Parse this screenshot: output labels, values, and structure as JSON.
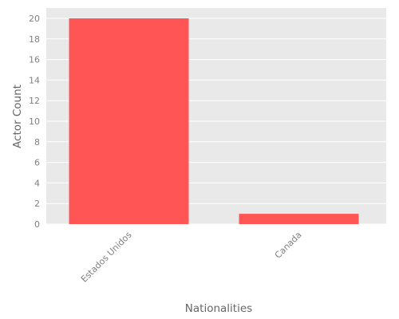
{
  "chart_data": {
    "type": "bar",
    "categories": [
      "Estados Unidos",
      "Canada"
    ],
    "values": [
      20,
      1
    ],
    "xlabel": "Nationalities",
    "ylabel": "Actor Count",
    "ylim": [
      0,
      21
    ],
    "yticks": [
      0,
      2,
      4,
      6,
      8,
      10,
      12,
      14,
      16,
      18,
      20
    ],
    "grid": true,
    "bar_color": "#ff5555",
    "background_color": "#e9e9e9",
    "grid_color": "#ffffff"
  }
}
